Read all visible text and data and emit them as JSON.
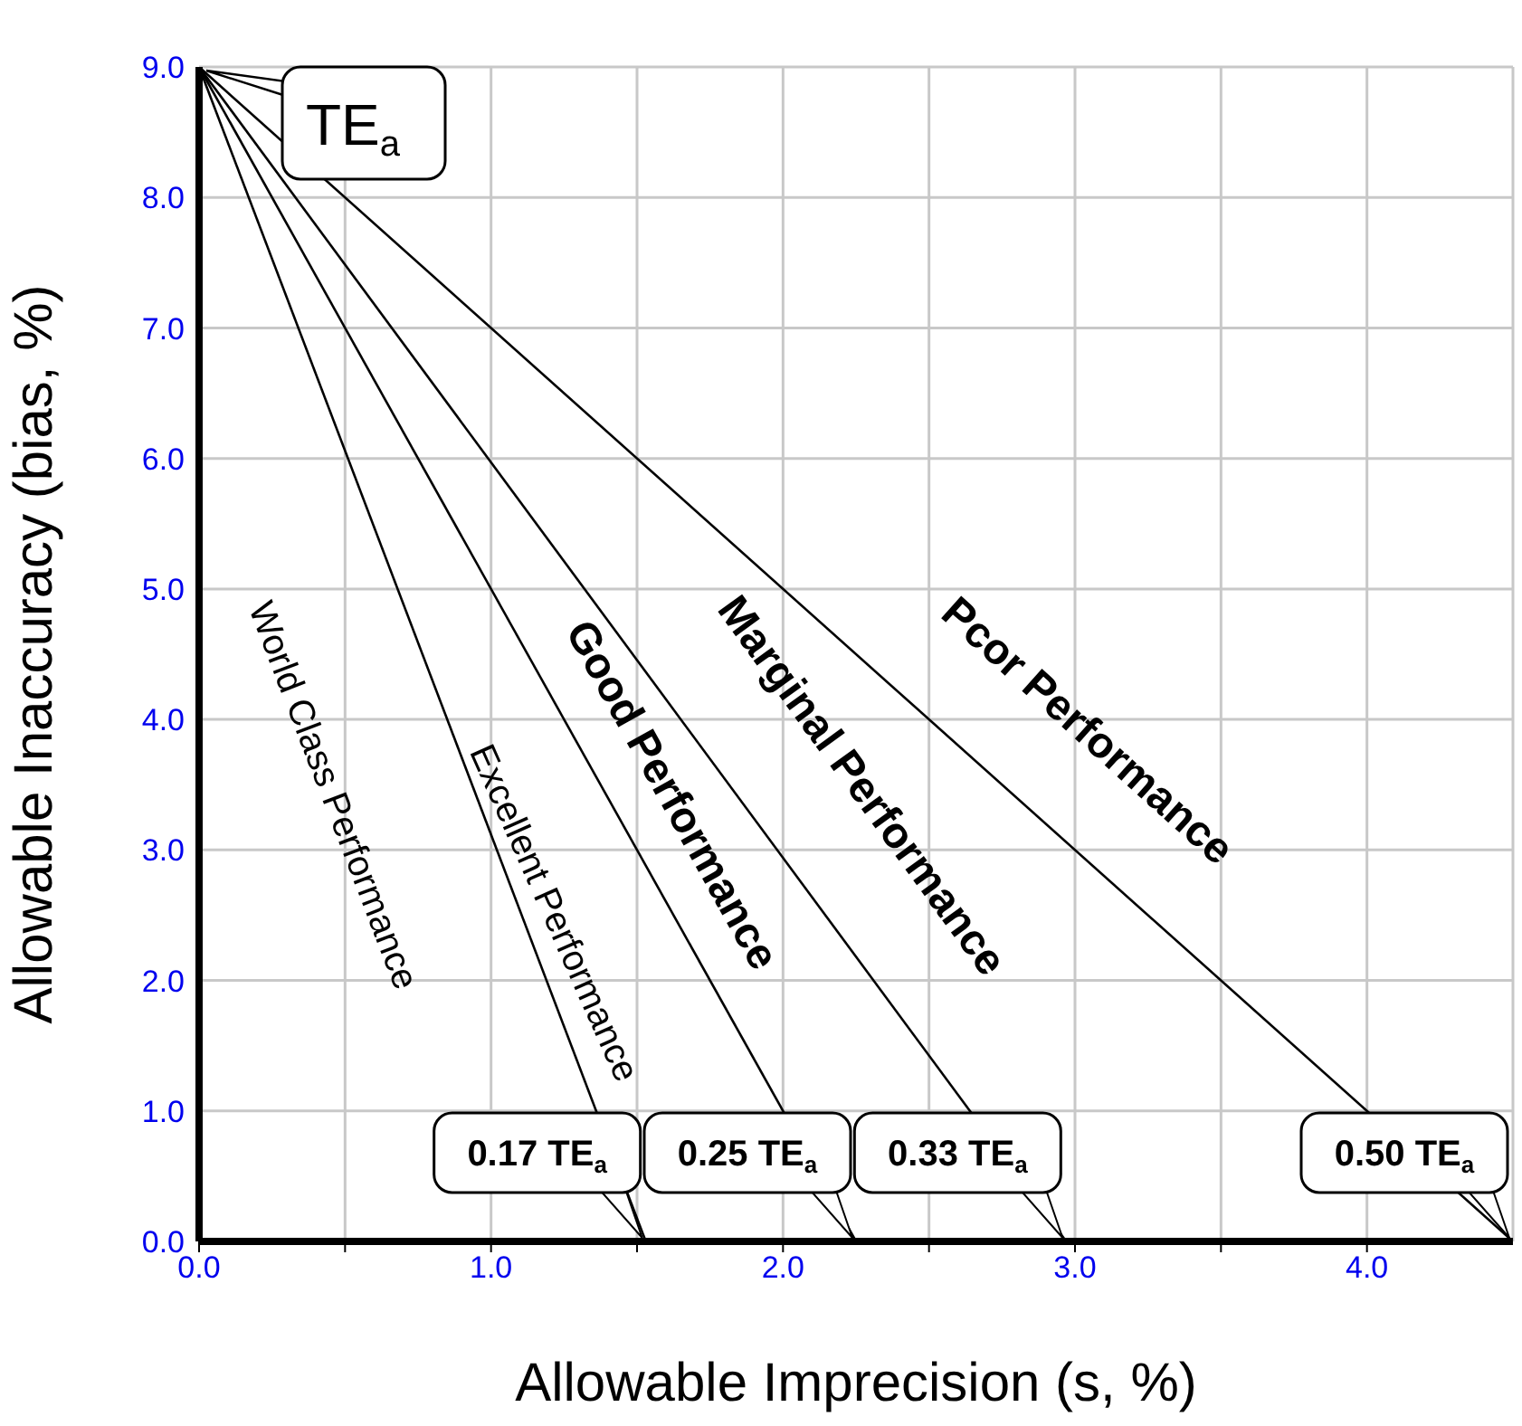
{
  "chart_data": {
    "type": "line",
    "xlabel": "Allowable Imprecision (s, %)",
    "ylabel": "Allowable Inaccuracy (bias, %)",
    "xlim": [
      0,
      4.5
    ],
    "ylim": [
      0,
      9
    ],
    "xticks": [
      {
        "value": 0,
        "label": "0.0"
      },
      {
        "value": 0.5,
        "label": null
      },
      {
        "value": 1,
        "label": "1.0"
      },
      {
        "value": 1.5,
        "label": null
      },
      {
        "value": 2,
        "label": "2.0"
      },
      {
        "value": 2.5,
        "label": null
      },
      {
        "value": 3,
        "label": "3.0"
      },
      {
        "value": 3.5,
        "label": null
      },
      {
        "value": 4,
        "label": "4.0"
      }
    ],
    "yticks": [
      {
        "value": 0,
        "label": "0.0"
      },
      {
        "value": 1,
        "label": "1.0"
      },
      {
        "value": 2,
        "label": "2.0"
      },
      {
        "value": 3,
        "label": "3.0"
      },
      {
        "value": 4,
        "label": "4.0"
      },
      {
        "value": 5,
        "label": "5.0"
      },
      {
        "value": 6,
        "label": "6.0"
      },
      {
        "value": 7,
        "label": "7.0"
      },
      {
        "value": 8,
        "label": "8.0"
      },
      {
        "value": 9,
        "label": "9.0"
      }
    ],
    "grid": true,
    "marker": "none",
    "line_style": "solid",
    "series": [
      {
        "color": "#000000",
        "x": [
          0,
          1.53
        ],
        "values": [
          9,
          0
        ]
      },
      {
        "color": "#000000",
        "x": [
          0,
          2.25
        ],
        "values": [
          9,
          0
        ]
      },
      {
        "color": "#000000",
        "x": [
          0,
          2.97
        ],
        "values": [
          9,
          0
        ]
      },
      {
        "color": "#000000",
        "x": [
          0,
          4.5
        ],
        "values": [
          9,
          0
        ]
      }
    ],
    "annotations": [
      {
        "text": "TE$_{a}$",
        "x": 0,
        "y": 9
      },
      {
        "text": "0.17 TE$_{a}$",
        "x": 1.53,
        "y": 0
      },
      {
        "text": "0.25 TE$_{a}$",
        "x": 2.25,
        "y": 0
      },
      {
        "text": "0.33 TE$_{a}$",
        "x": 2.97,
        "y": 0
      },
      {
        "text": "0.50 TE$_{a}$",
        "x": 4.5,
        "y": 0
      },
      "World Class Performance",
      "Excellent Performance",
      "Good Performance",
      "Marginal Performance",
      "Pcor Performance"
    ]
  }
}
